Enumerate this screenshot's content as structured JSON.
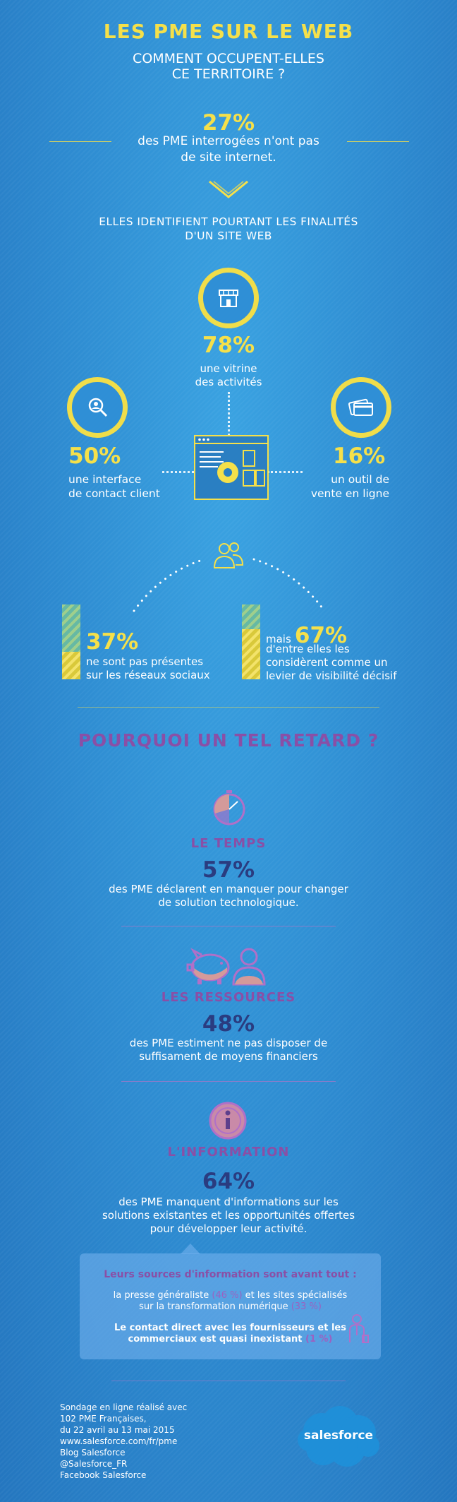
{
  "header": {
    "title": "LES PME SUR LE WEB",
    "subtitle_line1": "COMMENT OCCUPENT-ELLES",
    "subtitle_line2": "CE TERRITOIRE ?"
  },
  "no_site": {
    "percent": "27%",
    "line1": "des PME interrogées n'ont pas",
    "line2": "de site internet."
  },
  "purposes": {
    "heading_line1": "ELLES IDENTIFIENT POURTANT LES FINALITÉS",
    "heading_line2": "D'UN SITE WEB",
    "vitrine": {
      "percent": "78%",
      "line1": "une vitrine",
      "line2": "des activités",
      "icon": "shop-icon"
    },
    "contact": {
      "percent": "50%",
      "line1": "une interface",
      "line2": "de contact client",
      "icon": "magnifier-icon"
    },
    "vente": {
      "percent": "16%",
      "line1": "un outil de",
      "line2": "vente en ligne",
      "icon": "credit-card-icon"
    }
  },
  "social": {
    "absent": {
      "percent": "37%",
      "line1": "ne sont pas présentes",
      "line2": "sur les réseaux sociaux",
      "fill": 0.37
    },
    "visibility": {
      "prefix": "mais",
      "percent": "67%",
      "line1": "d'entre elles les",
      "line2": "considèrent comme un",
      "line3": "levier de visibilité décisif",
      "fill": 0.67
    }
  },
  "why": {
    "title": "POURQUOI UN TEL RETARD ?",
    "temps": {
      "title": "LE TEMPS",
      "percent": "57%",
      "line1": "des PME déclarent en manquer pour changer",
      "line2": "de solution technologique."
    },
    "ressources": {
      "title": "LES RESSOURCES",
      "percent": "48%",
      "line1": "des PME estiment ne pas disposer de",
      "line2": "suffisament de moyens financiers"
    },
    "information": {
      "title": "L'INFORMATION",
      "percent": "64%",
      "line1": "des PME manquent d'informations sur les",
      "line2": "solutions existantes et les opportunités offertes",
      "line3": "pour développer leur activité."
    }
  },
  "sources": {
    "title": "Leurs sources d'information sont avant tout :",
    "line1_a": "la presse généraliste ",
    "line1_b": "(46 %)",
    "line1_c": " et les sites spécialisés",
    "line2_a": "sur la transformation numérique ",
    "line2_b": "(33 %)",
    "line3": "Le contact direct avec les fournisseurs et les",
    "line4_a": "commerciaux est quasi inexistant ",
    "line4_b": "(1 %)"
  },
  "footer": {
    "lines": [
      "Sondage en ligne réalisé avec",
      "102 PME Françaises,",
      "du 22 avril au 13 mai 2015",
      "www.salesforce.com/fr/pme",
      "Blog Salesforce",
      "@Salesforce_FR",
      "Facebook Salesforce"
    ],
    "logo": "salesforce"
  },
  "colors": {
    "accent_yellow": "#f5e04a",
    "accent_purple": "#8a4fa6",
    "dark_blue": "#2a3c80",
    "background": "#2d8ad0"
  }
}
